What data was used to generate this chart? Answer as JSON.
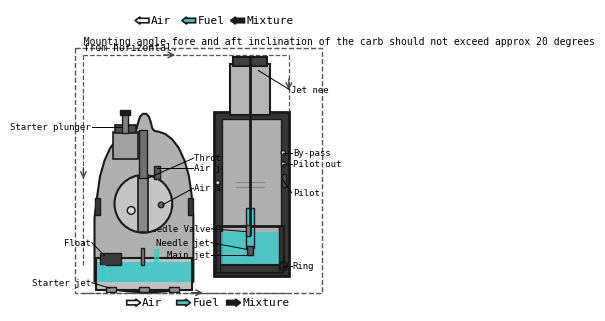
{
  "bg_color": "#ffffff",
  "note_line1": "  Mounting angle fore and aft inclination of the carb should not exceed approx 20 degrees",
  "note_line2": "  from horizontal.",
  "fuel_color": "#40c8c8",
  "dark_color": "#1a1a1a",
  "gray_body": "#b0b0b0",
  "gray_dark": "#505050",
  "gray_light": "#d0d0d0",
  "dashed_color": "#555555",
  "label_fontsize": 6.5,
  "note_fontsize": 7.0,
  "legend_fontsize": 8.0
}
